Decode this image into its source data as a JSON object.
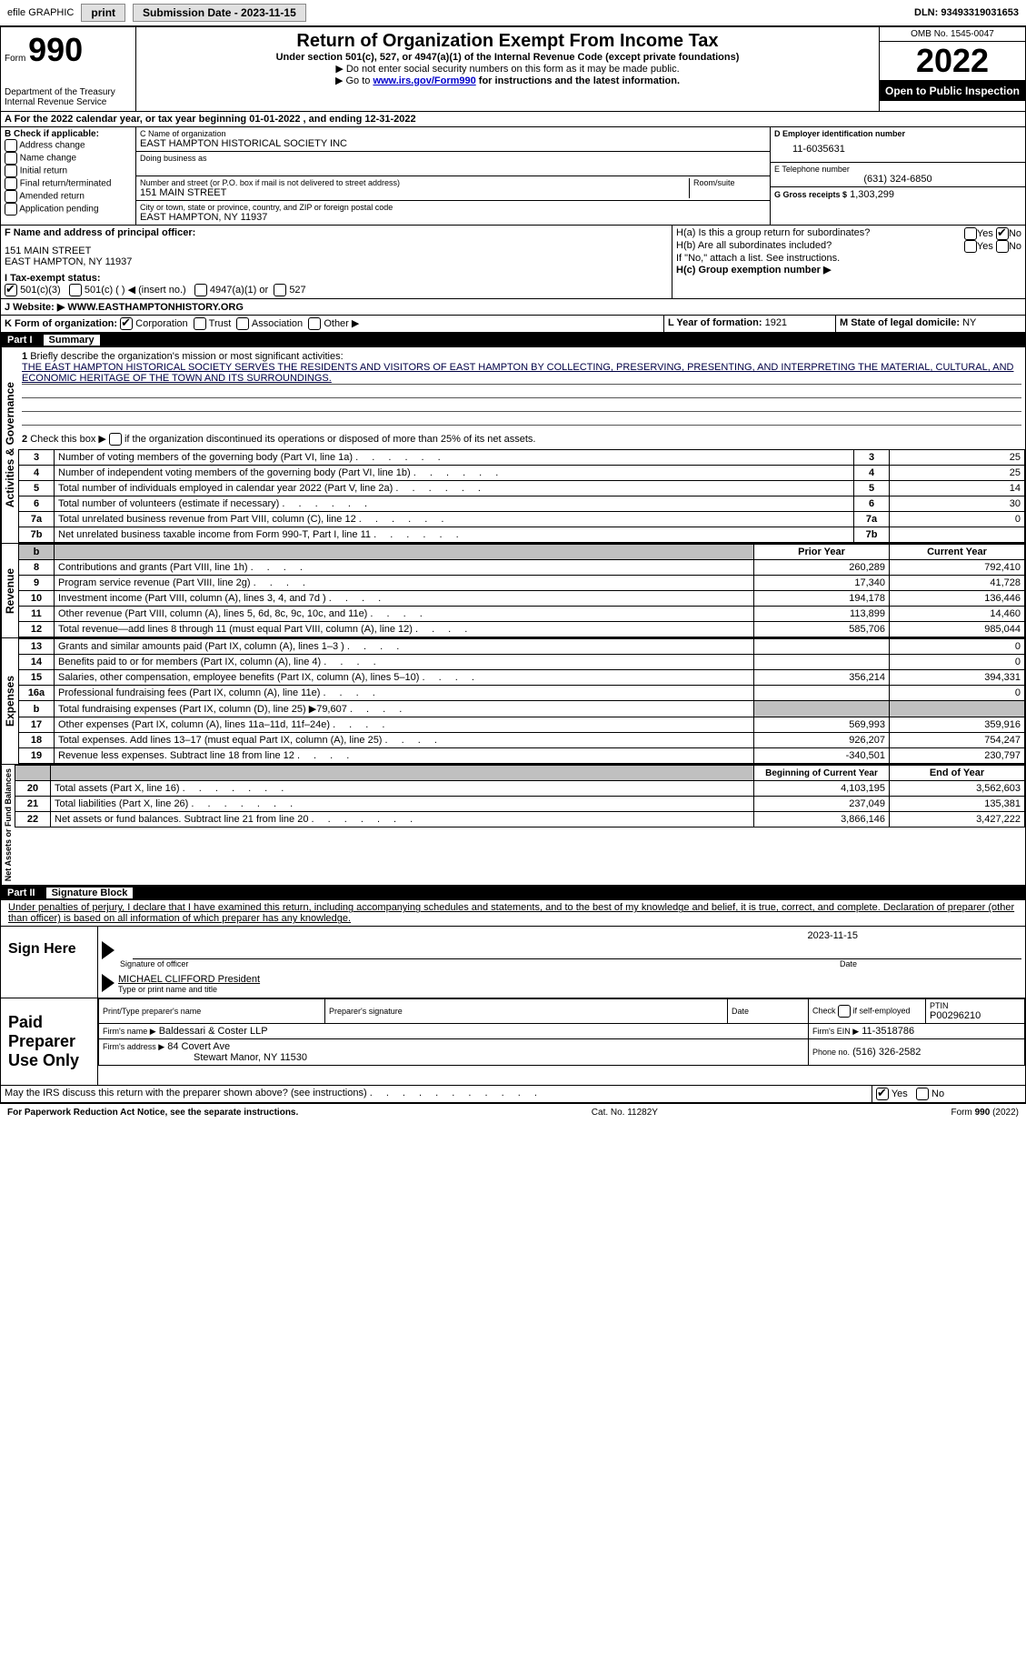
{
  "topbar": {
    "efile": "efile GRAPHIC",
    "print": "print",
    "sub_label": "Submission Date - 2023-11-15",
    "dln": "DLN: 93493319031653"
  },
  "header": {
    "form_word": "Form",
    "form_num": "990",
    "dept": "Department of the Treasury",
    "irs": "Internal Revenue Service",
    "title": "Return of Organization Exempt From Income Tax",
    "sub1": "Under section 501(c), 527, or 4947(a)(1) of the Internal Revenue Code (except private foundations)",
    "sub2": "▶ Do not enter social security numbers on this form as it may be made public.",
    "sub3_pre": "▶ Go to ",
    "sub3_link": "www.irs.gov/Form990",
    "sub3_post": " for instructions and the latest information.",
    "omb": "OMB No. 1545-0047",
    "year": "2022",
    "open": "Open to Public Inspection"
  },
  "periodA": {
    "text": "For the 2022 calendar year, or tax year beginning 01-01-2022    , and ending 12-31-2022"
  },
  "boxB": {
    "label": "B Check if applicable:",
    "items": [
      "Address change",
      "Name change",
      "Initial return",
      "Final return/terminated",
      "Amended return",
      "Application pending"
    ]
  },
  "boxC": {
    "name_label": "C Name of organization",
    "name": "EAST HAMPTON HISTORICAL SOCIETY INC",
    "dba_label": "Doing business as",
    "street_label": "Number and street (or P.O. box if mail is not delivered to street address)",
    "street": "151 MAIN STREET",
    "room_label": "Room/suite",
    "city_label": "City or town, state or province, country, and ZIP or foreign postal code",
    "city": "EAST HAMPTON, NY  11937"
  },
  "boxD": {
    "label": "D Employer identification number",
    "val": "11-6035631"
  },
  "boxE": {
    "label": "E Telephone number",
    "val": "(631) 324-6850"
  },
  "boxG": {
    "label": "G Gross receipts $",
    "val": "1,303,299"
  },
  "boxF": {
    "label": "F Name and address of principal officer:",
    "line1": "151 MAIN STREET",
    "line2": "EAST HAMPTON, NY  11937"
  },
  "boxH": {
    "a_label": "H(a)  Is this a group return for subordinates?",
    "b_label": "H(b)  Are all subordinates included?",
    "b_note": "If \"No,\" attach a list. See instructions.",
    "c_label": "H(c)  Group exemption number ▶",
    "yes": "Yes",
    "no": "No"
  },
  "boxI": {
    "label": "I    Tax-exempt status:",
    "opts": [
      "501(c)(3)",
      "501(c) (  ) ◀ (insert no.)",
      "4947(a)(1) or",
      "527"
    ]
  },
  "boxJ": {
    "label": "J    Website: ▶",
    "val": "WWW.EASTHAMPTONHISTORY.ORG"
  },
  "boxK": {
    "label": "K Form of organization:",
    "opts": [
      "Corporation",
      "Trust",
      "Association",
      "Other ▶"
    ]
  },
  "boxL": {
    "label": "L Year of formation:",
    "val": "1921"
  },
  "boxM": {
    "label": "M State of legal domicile:",
    "val": "NY"
  },
  "part1": {
    "label": "Part I",
    "title": "Summary"
  },
  "summary": {
    "q1": "Briefly describe the organization's mission or most significant activities:",
    "mission": "THE EAST HAMPTON HISTORICAL SOCIETY SERVES THE RESIDENTS AND VISITORS OF EAST HAMPTON BY COLLECTING, PRESERVING, PRESENTING, AND INTERPRETING THE MATERIAL, CULTURAL, AND ECONOMIC HERITAGE OF THE TOWN AND ITS SURROUNDINGS.",
    "q2": "Check this box ▶     if the organization discontinued its operations or disposed of more than 25% of its net assets.",
    "rows_ag": [
      {
        "n": "3",
        "label": "Number of voting members of the governing body (Part VI, line 1a)",
        "val": "25"
      },
      {
        "n": "4",
        "label": "Number of independent voting members of the governing body (Part VI, line 1b)",
        "val": "25"
      },
      {
        "n": "5",
        "label": "Total number of individuals employed in calendar year 2022 (Part V, line 2a)",
        "val": "14"
      },
      {
        "n": "6",
        "label": "Total number of volunteers (estimate if necessary)",
        "val": "30"
      },
      {
        "n": "7a",
        "label": "Total unrelated business revenue from Part VIII, column (C), line 12",
        "val": "0"
      },
      {
        "n": "7b",
        "label": "Net unrelated business taxable income from Form 990-T, Part I, line 11",
        "val": ""
      }
    ],
    "col_prior": "Prior Year",
    "col_current": "Current Year",
    "rows_rev": [
      {
        "n": "8",
        "label": "Contributions and grants (Part VIII, line 1h)",
        "prior": "260,289",
        "cur": "792,410"
      },
      {
        "n": "9",
        "label": "Program service revenue (Part VIII, line 2g)",
        "prior": "17,340",
        "cur": "41,728"
      },
      {
        "n": "10",
        "label": "Investment income (Part VIII, column (A), lines 3, 4, and 7d )",
        "prior": "194,178",
        "cur": "136,446"
      },
      {
        "n": "11",
        "label": "Other revenue (Part VIII, column (A), lines 5, 6d, 8c, 9c, 10c, and 11e)",
        "prior": "113,899",
        "cur": "14,460"
      },
      {
        "n": "12",
        "label": "Total revenue—add lines 8 through 11 (must equal Part VIII, column (A), line 12)",
        "prior": "585,706",
        "cur": "985,044"
      }
    ],
    "rows_exp": [
      {
        "n": "13",
        "label": "Grants and similar amounts paid (Part IX, column (A), lines 1–3 )",
        "prior": "",
        "cur": "0"
      },
      {
        "n": "14",
        "label": "Benefits paid to or for members (Part IX, column (A), line 4)",
        "prior": "",
        "cur": "0"
      },
      {
        "n": "15",
        "label": "Salaries, other compensation, employee benefits (Part IX, column (A), lines 5–10)",
        "prior": "356,214",
        "cur": "394,331"
      },
      {
        "n": "16a",
        "label": "Professional fundraising fees (Part IX, column (A), line 11e)",
        "prior": "",
        "cur": "0"
      },
      {
        "n": "b",
        "label": "Total fundraising expenses (Part IX, column (D), line 25) ▶79,607",
        "prior": "GRAY",
        "cur": "GRAY"
      },
      {
        "n": "17",
        "label": "Other expenses (Part IX, column (A), lines 11a–11d, 11f–24e)",
        "prior": "569,993",
        "cur": "359,916"
      },
      {
        "n": "18",
        "label": "Total expenses. Add lines 13–17 (must equal Part IX, column (A), line 25)",
        "prior": "926,207",
        "cur": "754,247"
      },
      {
        "n": "19",
        "label": "Revenue less expenses. Subtract line 18 from line 12",
        "prior": "-340,501",
        "cur": "230,797"
      }
    ],
    "col_begin": "Beginning of Current Year",
    "col_end": "End of Year",
    "rows_net": [
      {
        "n": "20",
        "label": "Total assets (Part X, line 16)",
        "prior": "4,103,195",
        "cur": "3,562,603"
      },
      {
        "n": "21",
        "label": "Total liabilities (Part X, line 26)",
        "prior": "237,049",
        "cur": "135,381"
      },
      {
        "n": "22",
        "label": "Net assets or fund balances. Subtract line 21 from line 20",
        "prior": "3,866,146",
        "cur": "3,427,222"
      }
    ]
  },
  "part2": {
    "label": "Part II",
    "title": "Signature Block",
    "penalty": "Under penalties of perjury, I declare that I have examined this return, including accompanying schedules and statements, and to the best of my knowledge and belief, it is true, correct, and complete. Declaration of preparer (other than officer) is based on all information of which preparer has any knowledge."
  },
  "sign": {
    "label": "Sign Here",
    "sig_of": "Signature of officer",
    "date_label": "Date",
    "date_val": "2023-11-15",
    "name": "MICHAEL CLIFFORD  President",
    "name_label": "Type or print name and title"
  },
  "preparer": {
    "label": "Paid Preparer Use Only",
    "print_label": "Print/Type preparer's name",
    "sig_label": "Preparer's signature",
    "date_label": "Date",
    "check_label": "Check         if self-employed",
    "ptin_label": "PTIN",
    "ptin": "P00296210",
    "firm_name_label": "Firm's name    ▶",
    "firm_name": "Baldessari & Coster LLP",
    "firm_ein_label": "Firm's EIN ▶",
    "firm_ein": "11-3518786",
    "firm_addr_label": "Firm's address ▶",
    "firm_addr": "84 Covert Ave",
    "firm_city": "Stewart Manor, NY  11530",
    "phone_label": "Phone no.",
    "phone": "(516) 326-2582"
  },
  "discuss": {
    "label": "May the IRS discuss this return with the preparer shown above? (see instructions)",
    "yes": "Yes",
    "no": "No"
  },
  "footer": {
    "left": "For Paperwork Reduction Act Notice, see the separate instructions.",
    "mid": "Cat. No. 11282Y",
    "right": "Form 990 (2022)"
  },
  "sides": {
    "ag": "Activities & Governance",
    "rev": "Revenue",
    "exp": "Expenses",
    "net": "Net Assets or Fund Balances"
  }
}
